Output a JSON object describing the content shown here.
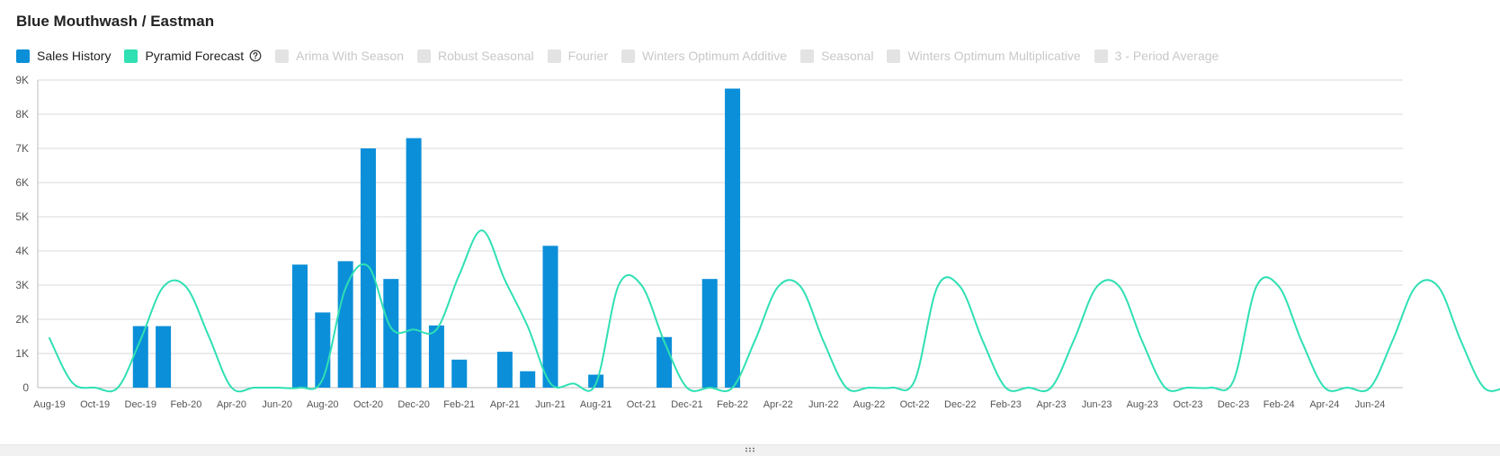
{
  "title": "Blue Mouthwash / Eastman",
  "colors": {
    "sales_history": "#0b8fd9",
    "pyramid_forecast": "#2fe0b3",
    "disabled": "#e3e3e3",
    "grid": "#d9d9d9",
    "axis_text": "#555555"
  },
  "legend": {
    "items": [
      {
        "label": "Sales History",
        "active": true,
        "color": "#0b8fd9"
      },
      {
        "label": "Pyramid Forecast",
        "active": true,
        "color": "#2fe0b3",
        "icon": "help-circle-icon"
      },
      {
        "label": "Arima With Season",
        "active": false
      },
      {
        "label": "Robust Seasonal",
        "active": false
      },
      {
        "label": "Fourier",
        "active": false
      },
      {
        "label": "Winters Optimum Additive",
        "active": false
      },
      {
        "label": "Seasonal",
        "active": false
      },
      {
        "label": "Winters Optimum Multiplicative",
        "active": false
      },
      {
        "label": "3 - Period Average",
        "active": false
      }
    ]
  },
  "chart_data": {
    "type": "bar",
    "x_labels": [
      "Aug-19",
      "Oct-19",
      "Dec-19",
      "Feb-20",
      "Apr-20",
      "Jun-20",
      "Aug-20",
      "Oct-20",
      "Dec-20",
      "Feb-21",
      "Apr-21",
      "Jun-21",
      "Aug-21",
      "Oct-21",
      "Dec-21",
      "Feb-22",
      "Apr-22",
      "Jun-22",
      "Aug-22",
      "Oct-22",
      "Dec-22",
      "Feb-23",
      "Apr-23",
      "Jun-23",
      "Aug-23",
      "Oct-23",
      "Dec-23",
      "Feb-24",
      "Apr-24",
      "Jun-24"
    ],
    "y_ticks": [
      "0",
      "1K",
      "2K",
      "3K",
      "4K",
      "5K",
      "6K",
      "7K",
      "8K",
      "9K"
    ],
    "ylim": [
      0,
      9000
    ],
    "grid": true,
    "legend_position": "top-left",
    "series": [
      {
        "name": "Sales History",
        "type": "bar",
        "color": "#0b8fd9",
        "points": [
          {
            "month": "Dec-19",
            "value": 1800
          },
          {
            "month": "Jan-20",
            "value": 1800
          },
          {
            "month": "Jul-20",
            "value": 3600
          },
          {
            "month": "Aug-20",
            "value": 2200
          },
          {
            "month": "Sep-20",
            "value": 3700
          },
          {
            "month": "Oct-20",
            "value": 7000
          },
          {
            "month": "Nov-20",
            "value": 3180
          },
          {
            "month": "Dec-20",
            "value": 7300
          },
          {
            "month": "Jan-21",
            "value": 1820
          },
          {
            "month": "Feb-21",
            "value": 820
          },
          {
            "month": "Apr-21",
            "value": 1050
          },
          {
            "month": "May-21",
            "value": 480
          },
          {
            "month": "Jun-21",
            "value": 4150
          },
          {
            "month": "Aug-21",
            "value": 380
          },
          {
            "month": "Nov-21",
            "value": 1480
          },
          {
            "month": "Jan-22",
            "value": 3180
          },
          {
            "month": "Feb-22",
            "value": 8750
          }
        ]
      },
      {
        "name": "Pyramid Forecast",
        "type": "line",
        "smooth": true,
        "color": "#2fe0b3",
        "values": [
          1450,
          150,
          0,
          0,
          1400,
          2950,
          2950,
          1500,
          0,
          0,
          0,
          0,
          250,
          2900,
          3550,
          1750,
          1700,
          1700,
          3300,
          4600,
          3150,
          1800,
          130,
          120,
          120,
          3000,
          3000,
          1350,
          0,
          0,
          0,
          1400,
          2950,
          2950,
          1350,
          0,
          0,
          0,
          200,
          2950,
          2950,
          1350,
          0,
          0,
          0,
          1400,
          2950,
          2950,
          1350,
          0,
          0,
          0,
          200,
          2950,
          2950,
          1350,
          0,
          0,
          0,
          1400,
          2950,
          2950,
          1350,
          0,
          0,
          0,
          350,
          0,
          0,
          0
        ]
      }
    ]
  }
}
